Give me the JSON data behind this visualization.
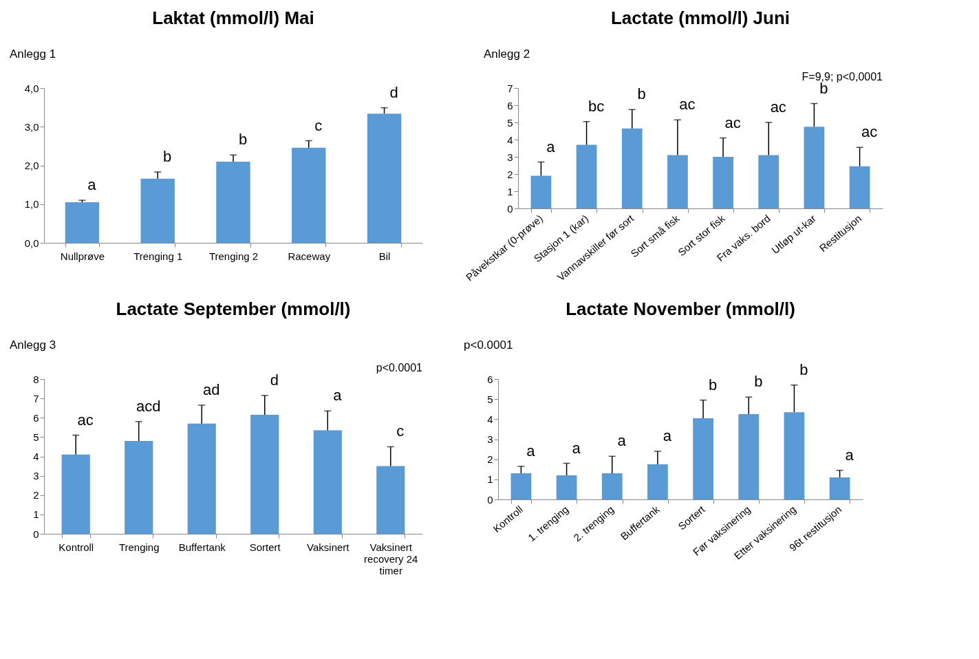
{
  "chart_data": [
    {
      "type": "bar",
      "title": "Laktat (mmol/l) Mai",
      "annotations": [
        "Anlegg 1"
      ],
      "categories": [
        "Nullprøve",
        "Trenging 1",
        "Trenging 2",
        "Raceway",
        "Bil"
      ],
      "color": "#5b9bd5",
      "values": [
        1.05,
        1.66,
        2.1,
        2.46,
        3.34
      ],
      "errors": [
        [
          1.05,
          1.1
        ],
        [
          1.66,
          1.83
        ],
        [
          2.1,
          2.27
        ],
        [
          2.46,
          2.64
        ],
        [
          3.34,
          3.49
        ]
      ],
      "value_labels": [
        "a",
        "b",
        "b",
        "c",
        "d"
      ],
      "ylim": [
        0,
        4
      ],
      "yticks": [
        {
          "value": 0,
          "label": "0,0"
        },
        {
          "value": 1,
          "label": "1,0"
        },
        {
          "value": 2,
          "label": "2,0"
        },
        {
          "value": 3,
          "label": "3,0"
        },
        {
          "value": 4,
          "label": "4,0"
        }
      ]
    },
    {
      "type": "bar",
      "title": "Lactate (mmol/l) Juni",
      "annotations": [
        "Anlegg 2",
        "F=9,9; p<0,0001"
      ],
      "categories": [
        "Påvekstkar (0-prøve)",
        "Stasjon 1 (kar)",
        "Vannavskiller før sort",
        "Sort små fisk",
        "Sort stor fisk",
        "Fra vaks. bord",
        "Utløp ut-kar",
        "Restitusjon"
      ],
      "color": "#5b9bd5",
      "values": [
        1.9,
        3.7,
        4.65,
        3.1,
        3.0,
        3.1,
        4.75,
        2.45
      ],
      "errors": [
        [
          1.9,
          2.7
        ],
        [
          3.7,
          5.05
        ],
        [
          4.65,
          5.75
        ],
        [
          3.1,
          5.15
        ],
        [
          3.0,
          4.1
        ],
        [
          3.1,
          5.0
        ],
        [
          4.75,
          6.1
        ],
        [
          2.45,
          3.55
        ]
      ],
      "value_labels": [
        "a",
        "bc",
        "b",
        "ac",
        "ac",
        "ac",
        "b",
        "ac"
      ],
      "ylim": [
        0,
        7
      ],
      "yticks": [
        0,
        1,
        2,
        3,
        4,
        5,
        6,
        7
      ]
    },
    {
      "type": "bar",
      "title": "Lactate September (mmol/l)",
      "annotations": [
        "Anlegg 3",
        "p<0.0001"
      ],
      "categories": [
        "Kontroll",
        "Trenging",
        "Buffertank",
        "Sortert",
        "Vaksinert",
        "Vaksinert recovery 24 timer"
      ],
      "color": "#5b9bd5",
      "values": [
        4.1,
        4.8,
        5.7,
        6.15,
        5.35,
        3.5
      ],
      "errors": [
        [
          4.1,
          5.1
        ],
        [
          4.8,
          5.8
        ],
        [
          5.7,
          6.65
        ],
        [
          6.15,
          7.15
        ],
        [
          5.35,
          6.35
        ],
        [
          3.5,
          4.5
        ]
      ],
      "value_labels": [
        "ac",
        "acd",
        "ad",
        "d",
        "a",
        "c"
      ],
      "ylim": [
        0,
        8
      ],
      "yticks": [
        0,
        1,
        2,
        3,
        4,
        5,
        6,
        7,
        8
      ]
    },
    {
      "type": "bar",
      "title": "Lactate November (mmol/l)",
      "annotations": [
        "p<0.0001"
      ],
      "categories": [
        "Kontroll",
        "1. trenging",
        "2. trenging",
        "Buffertank",
        "Sortert",
        "Før vaksinering",
        "Etter vaksinering",
        "96t restitusjon"
      ],
      "color": "#5b9bd5",
      "values": [
        1.3,
        1.2,
        1.3,
        1.75,
        4.05,
        4.25,
        4.35,
        1.1
      ],
      "errors": [
        [
          1.3,
          1.65
        ],
        [
          1.2,
          1.8
        ],
        [
          1.3,
          2.15
        ],
        [
          1.75,
          2.4
        ],
        [
          4.05,
          4.95
        ],
        [
          4.25,
          5.1
        ],
        [
          4.35,
          5.7
        ],
        [
          1.1,
          1.45
        ]
      ],
      "value_labels": [
        "a",
        "a",
        "a",
        "a",
        "b",
        "b",
        "b",
        "a"
      ],
      "ylim": [
        0,
        6
      ],
      "yticks": [
        0,
        1,
        2,
        3,
        4,
        5,
        6
      ]
    }
  ]
}
